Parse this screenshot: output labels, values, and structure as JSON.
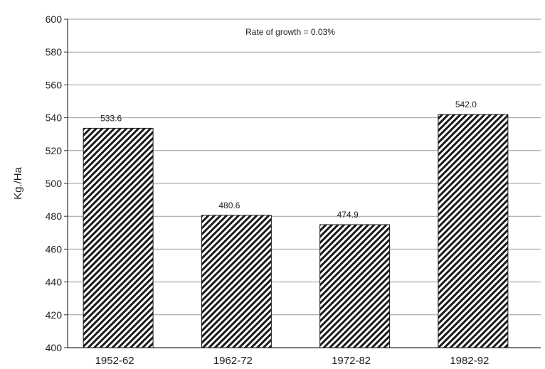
{
  "chart_data": {
    "type": "bar",
    "title": "",
    "annotation": "Rate of growth = 0.03%",
    "xlabel": "",
    "ylabel": "Kg./Ha",
    "categories": [
      "1952-62",
      "1962-72",
      "1972-82",
      "1982-92"
    ],
    "values": [
      533.6,
      480.6,
      474.9,
      542.0
    ],
    "data_labels": [
      "533.6",
      "480.6",
      "474.9",
      "542.0"
    ],
    "ylim": [
      400,
      600
    ],
    "yticks": [
      400,
      420,
      440,
      460,
      480,
      500,
      520,
      540,
      560,
      580,
      600
    ],
    "grid": true,
    "legend": "none",
    "bar_style": "diagonal-hatch",
    "colors": {
      "bar_fill": "#1a1a1a",
      "bar_background": "#ffffff",
      "grid": "#9a9a9a",
      "axis": "#333333"
    }
  }
}
